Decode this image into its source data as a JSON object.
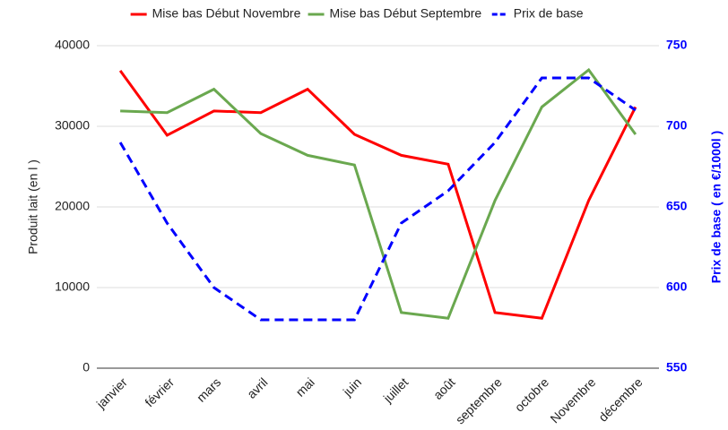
{
  "chart_data": {
    "type": "line",
    "categories": [
      "janvier",
      "février",
      "mars",
      "avril",
      "mai",
      "juin",
      "juillet",
      "août",
      "septembre",
      "octobre",
      "Novembre",
      "décembre"
    ],
    "series": [
      {
        "name": "Mise bas Début Novembre",
        "color": "#ff0000",
        "dash": false,
        "values": [
          36900,
          28900,
          31900,
          31700,
          34600,
          29000,
          26400,
          25300,
          6900,
          6200,
          20800,
          32400
        ]
      },
      {
        "name": "Mise bas Début Septembre",
        "color": "#6aa84f",
        "dash": false,
        "values": [
          31900,
          31700,
          34600,
          29100,
          26400,
          25200,
          6900,
          6200,
          20800,
          32400,
          37000,
          29000
        ]
      },
      {
        "name": "Prix de base",
        "color": "#0000ff",
        "dash": true,
        "axis": "y2",
        "values": [
          690,
          640,
          600,
          580,
          580,
          580,
          640,
          660,
          690,
          730,
          730,
          710
        ]
      }
    ],
    "ylabel": "Produit lait (en l )",
    "y2label": "Prix de base ( en €/1000l )",
    "ylim": [
      0,
      40000
    ],
    "yticks": [
      0,
      10000,
      20000,
      30000,
      40000
    ],
    "y2lim": [
      550,
      750
    ],
    "y2ticks": [
      550,
      600,
      650,
      700,
      750
    ],
    "y2color": "#0000ff",
    "grid": true,
    "legend": "top"
  }
}
